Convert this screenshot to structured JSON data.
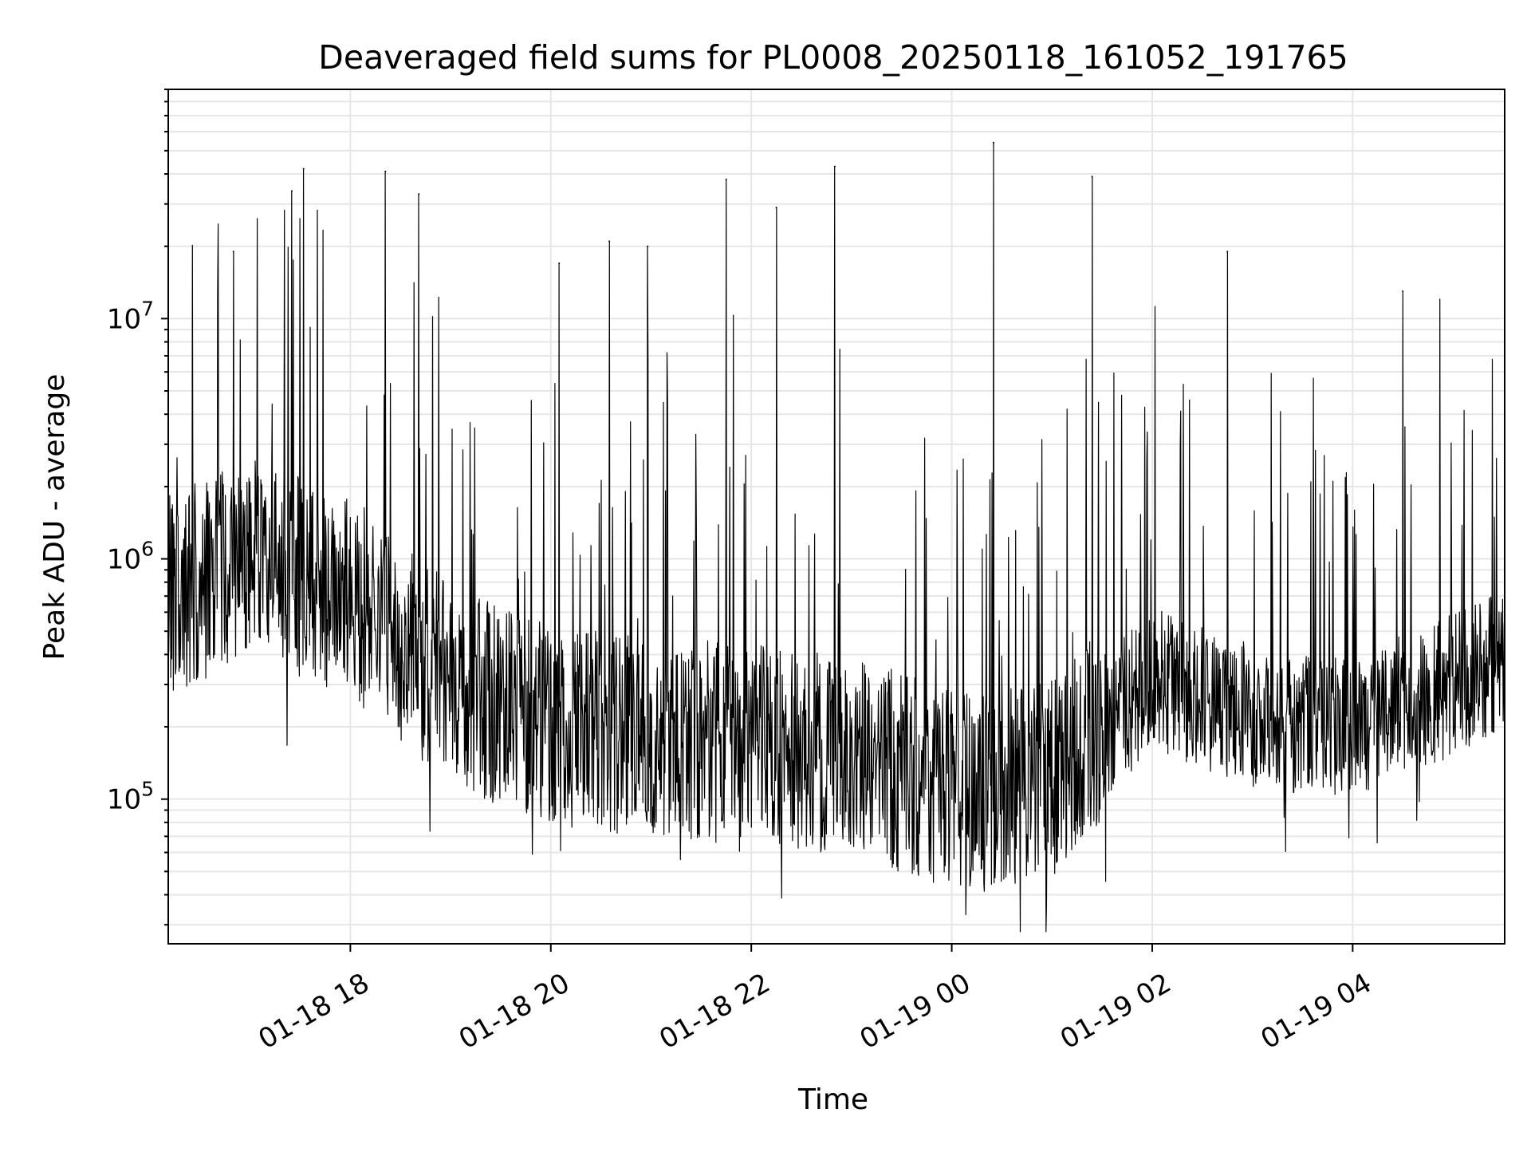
{
  "chart_data": {
    "type": "line",
    "title": "Deaveraged field sums for PL0008_20250118_161052_191765",
    "xlabel": "Time",
    "ylabel": "Peak ADU - average",
    "x_range": [
      "2025-01-18 16:11",
      "2025-01-19 05:31"
    ],
    "y_scale": "log",
    "ylim": [
      25000,
      90000000
    ],
    "grid": true,
    "legend": "none",
    "line_color": "#000000",
    "grid_color": "#e6e6e6",
    "x_ticks": [
      {
        "time": "2025-01-18 18:00",
        "label": "01-18 18"
      },
      {
        "time": "2025-01-18 20:00",
        "label": "01-18 20"
      },
      {
        "time": "2025-01-18 22:00",
        "label": "01-18 22"
      },
      {
        "time": "2025-01-19 00:00",
        "label": "01-19 00"
      },
      {
        "time": "2025-01-19 02:00",
        "label": "01-19 02"
      },
      {
        "time": "2025-01-19 04:00",
        "label": "01-19 04"
      }
    ],
    "y_ticks": [
      {
        "value": 100000,
        "base": "10",
        "exp": "5"
      },
      {
        "value": 1000000,
        "base": "10",
        "exp": "6"
      },
      {
        "value": 10000000,
        "base": "10",
        "exp": "7"
      }
    ],
    "baseline_envelope": {
      "note": "approximate typical level of the dense noisy series over time",
      "time": [
        "2025-01-18 16:11",
        "2025-01-18 17:00",
        "2025-01-18 18:00",
        "2025-01-18 19:00",
        "2025-01-18 20:00",
        "2025-01-18 21:00",
        "2025-01-18 22:00",
        "2025-01-18 23:00",
        "2025-01-19 00:00",
        "2025-01-19 01:00",
        "2025-01-19 02:00",
        "2025-01-19 03:00",
        "2025-01-19 04:00",
        "2025-01-19 05:00",
        "2025-01-19 05:31"
      ],
      "median": [
        700000,
        1000000,
        700000,
        300000,
        200000,
        180000,
        170000,
        150000,
        110000,
        120000,
        320000,
        220000,
        200000,
        300000,
        400000
      ]
    },
    "spikes": [
      {
        "time": "2025-01-18 16:50",
        "value": 19000000
      },
      {
        "time": "2025-01-18 17:25",
        "value": 34000000
      },
      {
        "time": "2025-01-18 17:32",
        "value": 42000000
      },
      {
        "time": "2025-01-18 18:21",
        "value": 41000000
      },
      {
        "time": "2025-01-18 18:41",
        "value": 33000000
      },
      {
        "time": "2025-01-18 20:05",
        "value": 17000000
      },
      {
        "time": "2025-01-18 20:35",
        "value": 21000000
      },
      {
        "time": "2025-01-18 20:58",
        "value": 20000000
      },
      {
        "time": "2025-01-18 21:45",
        "value": 38000000
      },
      {
        "time": "2025-01-18 22:15",
        "value": 29000000
      },
      {
        "time": "2025-01-18 22:50",
        "value": 43000000
      },
      {
        "time": "2025-01-19 00:25",
        "value": 54000000
      },
      {
        "time": "2025-01-19 01:24",
        "value": 39000000
      },
      {
        "time": "2025-01-19 02:45",
        "value": 19000000
      },
      {
        "time": "2025-01-19 04:30",
        "value": 13000000
      }
    ]
  }
}
